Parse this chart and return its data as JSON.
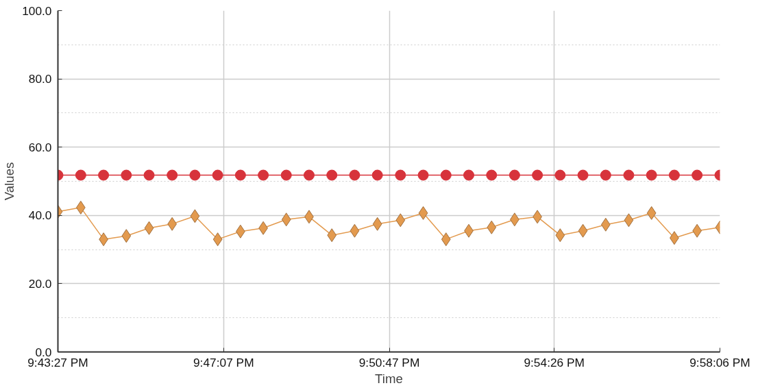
{
  "chart_data": {
    "type": "line",
    "xlabel": "Time",
    "ylabel": "Values",
    "x": [
      21.72417,
      21.7326,
      21.741,
      21.7494,
      21.7578,
      21.7663,
      21.7747,
      21.7831,
      21.7915,
      21.7999,
      21.8084,
      21.8168,
      21.8252,
      21.8336,
      21.842,
      21.8505,
      21.8589,
      21.8673,
      21.8757,
      21.8841,
      21.8926,
      21.901,
      21.9094,
      21.9178,
      21.9262,
      21.9347,
      21.9431,
      21.9515,
      21.9599,
      21.96833
    ],
    "series": [
      {
        "color": "#d7333b",
        "marker": "circle",
        "values": [
          51.8,
          51.8,
          51.8,
          51.8,
          51.8,
          51.8,
          51.8,
          51.8,
          51.8,
          51.8,
          51.8,
          51.8,
          51.8,
          51.8,
          51.8,
          51.8,
          51.8,
          51.8,
          51.8,
          51.8,
          51.8,
          51.8,
          51.8,
          51.8,
          51.8,
          51.8,
          51.8,
          51.8,
          51.8,
          51.8
        ]
      },
      {
        "color": "#e39a4e",
        "marker": "diamond",
        "values": [
          41.1,
          42.3,
          33.0,
          34.0,
          36.3,
          37.5,
          39.8,
          33.0,
          35.3,
          36.3,
          38.8,
          39.6,
          34.2,
          35.5,
          37.5,
          38.6,
          40.7,
          33.0,
          35.5,
          36.5,
          38.8,
          39.6,
          34.2,
          35.5,
          37.3,
          38.6,
          40.7,
          33.4,
          35.5,
          36.5
        ]
      }
    ],
    "xlim": [
      21.72417,
      21.96833
    ],
    "xticks": [
      {
        "value": 21.72417,
        "label": "9:43:27 PM"
      },
      {
        "value": 21.78528,
        "label": "9:47:07 PM"
      },
      {
        "value": 21.84639,
        "label": "9:50:47 PM"
      },
      {
        "value": 21.90722,
        "label": "9:54:26 PM"
      },
      {
        "value": 21.96833,
        "label": "9:58:06 PM"
      }
    ],
    "ylim": [
      0,
      100
    ],
    "yticks": [
      {
        "value": 0,
        "label": "0.0"
      },
      {
        "value": 20,
        "label": "20.0"
      },
      {
        "value": 40,
        "label": "40.0"
      },
      {
        "value": 60,
        "label": "60.0"
      },
      {
        "value": 80,
        "label": "80.0"
      },
      {
        "value": 100,
        "label": "100.0"
      }
    ],
    "grid": true,
    "line_style": "solid"
  }
}
